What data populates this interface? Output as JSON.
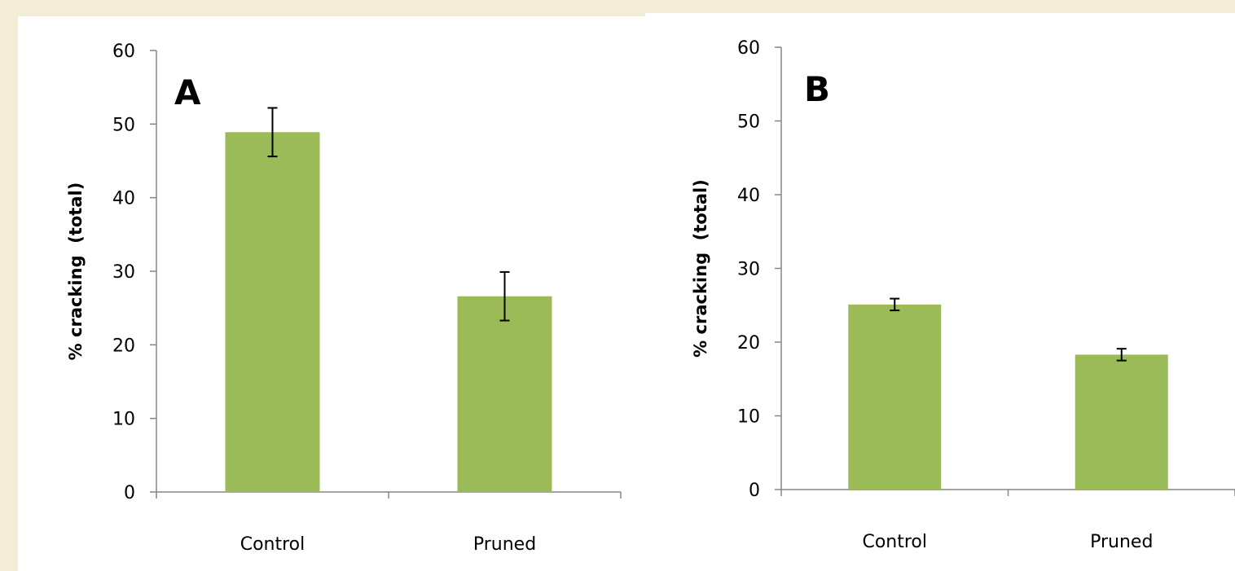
{
  "colors": {
    "background": "#f3ecd6",
    "panel": "#ffffff",
    "bar": "#9bbb59",
    "axis": "#868686",
    "error_bar": "#000000"
  },
  "chart_data": [
    {
      "type": "bar",
      "panel_label": "A",
      "categories": [
        "Control",
        "Pruned"
      ],
      "values": [
        48.9,
        26.6
      ],
      "errors": [
        3.3,
        3.3
      ],
      "ylabel": "% cracking  (total)",
      "xlabel": "",
      "ylim": [
        0,
        60
      ],
      "yticks": [
        "0",
        "10",
        "20",
        "30",
        "40",
        "50",
        "60"
      ],
      "grid": false,
      "legend": "none"
    },
    {
      "type": "bar",
      "panel_label": "B",
      "categories": [
        "Control",
        "Pruned"
      ],
      "values": [
        25.1,
        18.3
      ],
      "errors": [
        0.8,
        0.8
      ],
      "ylabel": "% cracking  (total)",
      "xlabel": "",
      "ylim": [
        0,
        60
      ],
      "yticks": [
        "0",
        "10",
        "20",
        "30",
        "40",
        "50",
        "60"
      ],
      "grid": false,
      "legend": "none"
    }
  ]
}
